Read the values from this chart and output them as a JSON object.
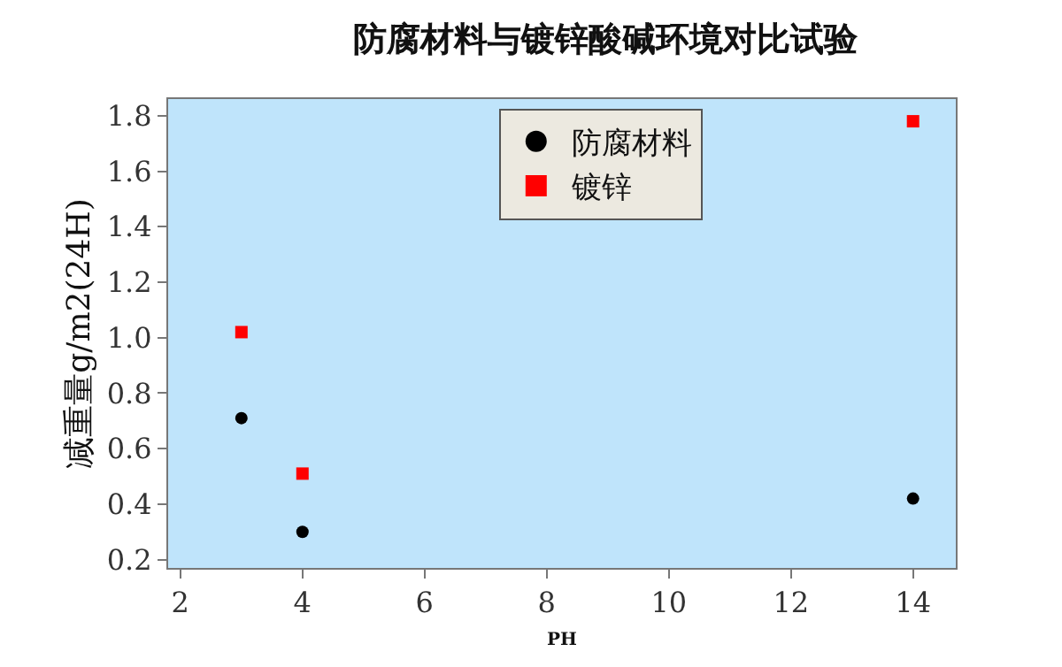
{
  "chart_data": {
    "type": "scatter",
    "title": "防腐材料与镀锌酸碱环境对比试验",
    "xlabel": "PH",
    "ylabel": "减重量g/m2(24H)",
    "x": [
      3,
      4,
      14
    ],
    "series": [
      {
        "name": "防腐材料",
        "color": "#000000",
        "marker": "circle",
        "values": [
          0.71,
          0.3,
          0.42
        ]
      },
      {
        "name": "镀锌",
        "color": "#ff0000",
        "marker": "square",
        "values": [
          1.02,
          0.51,
          1.78
        ]
      }
    ],
    "xlim": [
      1.8,
      14.7
    ],
    "xticks": [
      2,
      4,
      6,
      8,
      10,
      12,
      14
    ],
    "ylim": [
      0.17,
      1.86
    ],
    "yticks": [
      {
        "value": 0.2,
        "label": "0.2"
      },
      {
        "value": 0.4,
        "label": "0.4"
      },
      {
        "value": 0.6,
        "label": "0.6"
      },
      {
        "value": 0.8,
        "label": "0.8"
      },
      {
        "value": 1.0,
        "label": "1.0"
      },
      {
        "value": 1.2,
        "label": "1.2"
      },
      {
        "value": 1.4,
        "label": "1.4"
      },
      {
        "value": 1.6,
        "label": "1.6"
      },
      {
        "value": 1.8,
        "label": "1.8"
      }
    ],
    "grid": false,
    "legend": "top"
  }
}
